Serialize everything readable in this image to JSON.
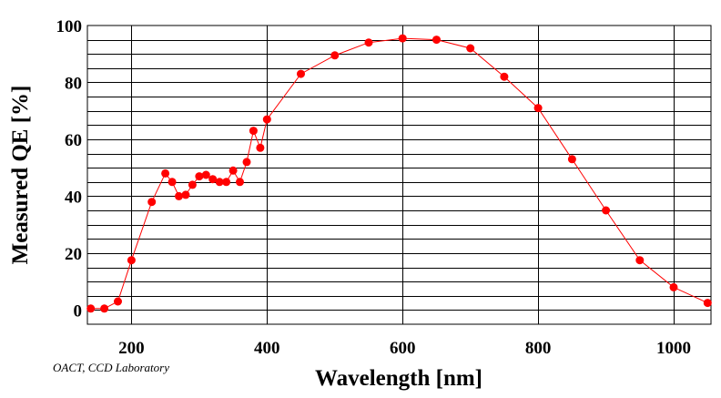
{
  "chart_data": {
    "type": "line",
    "title": "",
    "xlabel": "Wavelength [nm]",
    "ylabel": "Measured QE [%]",
    "xlim": [
      135,
      1055
    ],
    "ylim": [
      -5,
      100
    ],
    "x_ticks": [
      200,
      400,
      600,
      800,
      1000
    ],
    "x_tick_labels": [
      "200",
      "400",
      "600",
      "800",
      "1000"
    ],
    "y_ticks": [
      0,
      20,
      40,
      60,
      80,
      100
    ],
    "y_tick_labels": [
      "0",
      "20",
      "40",
      "60",
      "80",
      "100"
    ],
    "y_gridlines": [
      0,
      5,
      10,
      15,
      20,
      25,
      30,
      35,
      40,
      45,
      50,
      55,
      60,
      65,
      70,
      75,
      80,
      85,
      90,
      95
    ],
    "x_gridlines": [
      200,
      400,
      600,
      800,
      1000
    ],
    "grid": true,
    "line_color": "#ff0000",
    "marker_color": "#ff0000",
    "annotation": "OACT, CCD Laboratory",
    "series": [
      {
        "name": "Measured QE",
        "x": [
          140,
          160,
          180,
          200,
          230,
          250,
          260,
          270,
          280,
          290,
          300,
          310,
          320,
          330,
          340,
          350,
          360,
          370,
          380,
          390,
          400,
          450,
          500,
          550,
          600,
          650,
          700,
          750,
          800,
          850,
          900,
          950,
          1000,
          1050
        ],
        "y": [
          0.5,
          0.5,
          3,
          17.5,
          38,
          48,
          45,
          40,
          40.5,
          44,
          47,
          47.5,
          46,
          45,
          45,
          49,
          45,
          52,
          63,
          57,
          67,
          83,
          89.5,
          94,
          95.5,
          95,
          92,
          82,
          71,
          53,
          35,
          17.5,
          8,
          2.5
        ]
      }
    ]
  }
}
